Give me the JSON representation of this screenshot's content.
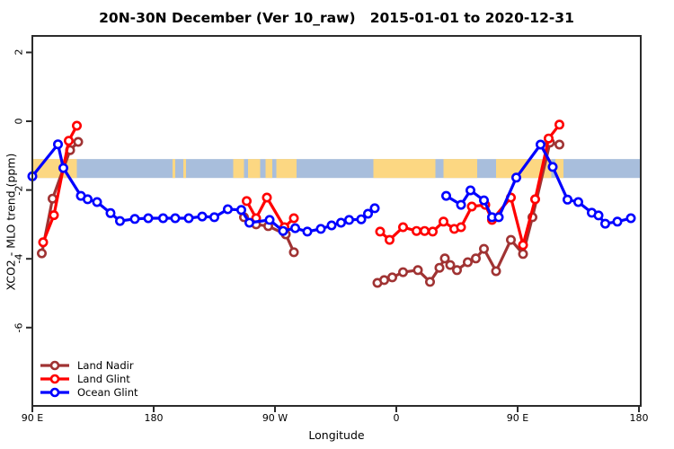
{
  "title": "20N-30N December (Ver 10_raw)   2015-01-01 to 2020-12-31",
  "axes": {
    "x": {
      "label": "Longitude",
      "ticks": [
        {
          "lon": 90,
          "label": "90 E"
        },
        {
          "lon": 180,
          "label": "180"
        },
        {
          "lon": 270,
          "label": "90 W"
        },
        {
          "lon": 360,
          "label": "0"
        },
        {
          "lon": 450,
          "label": "90 E"
        },
        {
          "lon": 540,
          "label": "180"
        }
      ]
    },
    "y": {
      "label": "XCO2 - MLO trend (ppm)",
      "ticks": [
        {
          "val": 2,
          "label": "2"
        },
        {
          "val": 0,
          "label": "0"
        },
        {
          "val": -2,
          "label": "-2"
        },
        {
          "val": -4,
          "label": "-4"
        },
        {
          "val": -6,
          "label": "-6"
        }
      ]
    }
  },
  "map_band": {
    "description": "20N-30N world map strip drawn across plot",
    "ocean_color": "#a8bedc",
    "land_color": "#fcd782",
    "y_range_ppm": [
      -1.1,
      -1.65
    ],
    "land_segments_lon": [
      [
        90,
        123
      ],
      [
        194,
        196
      ],
      [
        202,
        204
      ],
      [
        239,
        247
      ],
      [
        250,
        259
      ],
      [
        263,
        268
      ],
      [
        271,
        286
      ],
      [
        343,
        389
      ],
      [
        395,
        420
      ],
      [
        434,
        475
      ],
      [
        478,
        484
      ]
    ]
  },
  "chart_data": {
    "type": "line",
    "title": "20N-30N December (Ver 10_raw)   2015-01-01 to 2020-12-31",
    "xlabel": "Longitude",
    "ylabel": "XCO2 - MLO trend (ppm)",
    "x_encoding": "degrees east, continuous 90 to 540 (axis wraps past 180 to 90W, 0, 90E, 180)",
    "xlim": [
      90,
      540
    ],
    "ylim_shown_ticks": [
      -6,
      2
    ],
    "grid": false,
    "legend_position": "bottom-left inside plot",
    "marker": "open-circle",
    "series": [
      {
        "name": "Land Nadir",
        "color": "#a03333",
        "segments": [
          [
            [
              97,
              -3.84
            ],
            [
              105,
              -2.25
            ],
            [
              118,
              -0.84
            ],
            [
              124,
              -0.6
            ]
          ],
          [
            [
              247,
              -2.79
            ],
            [
              256,
              -3.0
            ],
            [
              265,
              -3.05
            ],
            [
              278,
              -3.29
            ],
            [
              284,
              -3.81
            ]
          ],
          [
            [
              346,
              -4.7
            ],
            [
              351,
              -4.62
            ],
            [
              357,
              -4.54
            ],
            [
              365,
              -4.39
            ],
            [
              376,
              -4.33
            ],
            [
              385,
              -4.67
            ],
            [
              392,
              -4.26
            ],
            [
              396,
              -3.99
            ],
            [
              400,
              -4.18
            ],
            [
              405,
              -4.33
            ],
            [
              413,
              -4.1
            ],
            [
              419,
              -3.99
            ],
            [
              425,
              -3.71
            ],
            [
              434,
              -4.36
            ],
            [
              445,
              -3.45
            ],
            [
              454,
              -3.86
            ],
            [
              461,
              -2.79
            ],
            [
              474,
              -0.62
            ],
            [
              481,
              -0.68
            ]
          ]
        ]
      },
      {
        "name": "Land Glint",
        "color": "#ff0000",
        "segments": [
          [
            [
              98,
              -3.52
            ],
            [
              106,
              -2.73
            ],
            [
              117,
              -0.57
            ],
            [
              123,
              -0.13
            ]
          ],
          [
            [
              249,
              -2.32
            ],
            [
              256,
              -2.82
            ],
            [
              264,
              -2.22
            ],
            [
              277,
              -3.08
            ],
            [
              284,
              -2.82
            ]
          ],
          [
            [
              348,
              -3.21
            ],
            [
              355,
              -3.45
            ],
            [
              365,
              -3.08
            ],
            [
              375,
              -3.19
            ],
            [
              381,
              -3.19
            ],
            [
              387,
              -3.21
            ],
            [
              395,
              -2.92
            ],
            [
              403,
              -3.13
            ],
            [
              408,
              -3.08
            ],
            [
              416,
              -2.48
            ],
            [
              426,
              -2.43
            ],
            [
              431,
              -2.87
            ],
            [
              445,
              -2.22
            ],
            [
              454,
              -3.6
            ],
            [
              463,
              -2.27
            ],
            [
              473,
              -0.5
            ],
            [
              481,
              -0.1
            ]
          ]
        ]
      },
      {
        "name": "Ocean Glint",
        "color": "#0000ff",
        "segments": [
          [
            [
              90,
              -1.6
            ],
            [
              109,
              -0.67
            ],
            [
              113,
              -1.36
            ],
            [
              126,
              -2.17
            ],
            [
              131,
              -2.27
            ],
            [
              138,
              -2.35
            ],
            [
              148,
              -2.67
            ],
            [
              155,
              -2.9
            ],
            [
              166,
              -2.84
            ],
            [
              176,
              -2.82
            ],
            [
              187,
              -2.82
            ],
            [
              196,
              -2.82
            ],
            [
              206,
              -2.82
            ],
            [
              216,
              -2.77
            ],
            [
              225,
              -2.79
            ],
            [
              235,
              -2.56
            ],
            [
              245,
              -2.58
            ],
            [
              251,
              -2.95
            ],
            [
              266,
              -2.87
            ],
            [
              276,
              -3.19
            ],
            [
              285,
              -3.11
            ],
            [
              294,
              -3.21
            ],
            [
              304,
              -3.13
            ],
            [
              312,
              -3.03
            ],
            [
              319,
              -2.95
            ],
            [
              325,
              -2.87
            ],
            [
              334,
              -2.85
            ],
            [
              339,
              -2.69
            ],
            [
              344,
              -2.53
            ]
          ],
          [
            [
              397,
              -2.17
            ],
            [
              408,
              -2.43
            ],
            [
              415,
              -2.01
            ],
            [
              425,
              -2.3
            ],
            [
              431,
              -2.79
            ],
            [
              436,
              -2.79
            ],
            [
              449,
              -1.64
            ],
            [
              467,
              -0.68
            ],
            [
              476,
              -1.33
            ],
            [
              487,
              -2.28
            ],
            [
              495,
              -2.35
            ],
            [
              505,
              -2.66
            ],
            [
              510,
              -2.74
            ],
            [
              515,
              -2.98
            ],
            [
              524,
              -2.92
            ],
            [
              534,
              -2.82
            ]
          ]
        ]
      }
    ]
  },
  "style": {
    "axis_color": "#2b2b2b",
    "background": "#ffffff"
  }
}
